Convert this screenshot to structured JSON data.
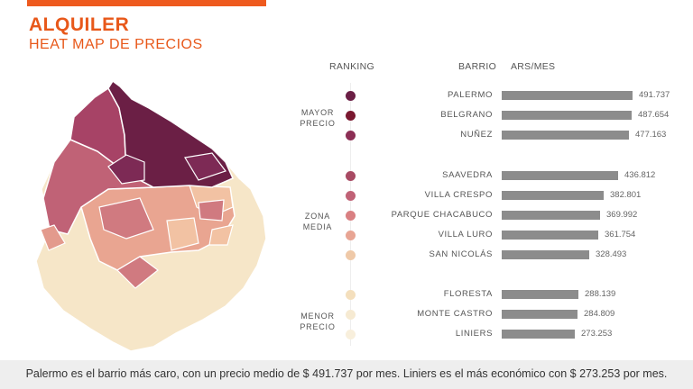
{
  "title": "ALQUILER",
  "subtitle": "HEAT MAP DE PRECIOS",
  "headers": {
    "ranking": "RANKING",
    "barrio": "BARRIO",
    "unit": "ARS/MES"
  },
  "groups": {
    "top": "MAYOR PRECIO",
    "mid": "ZONA MEDIA",
    "low": "MENOR PRECIO"
  },
  "rank_colors": [
    "#6b1f45",
    "#7a1830",
    "#8c2f55",
    "#a84a63",
    "#c06276",
    "#d98082",
    "#e8a594",
    "#efc9a8",
    "#f4dfbd",
    "#f6ead2",
    "#f8efdc"
  ],
  "chart_data": {
    "type": "bar",
    "orientation": "horizontal",
    "categories": [
      "PALERMO",
      "BELGRANO",
      "NUÑEZ",
      "SAAVEDRA",
      "VILLA CRESPO",
      "PARQUE CHACABUCO",
      "VILLA LURO",
      "SAN NICOLÁS",
      "FLORESTA",
      "MONTE CASTRO",
      "LINIERS"
    ],
    "values": [
      491737,
      487654,
      477163,
      436812,
      382801,
      369992,
      361754,
      328493,
      288139,
      284809,
      273253
    ],
    "value_labels": [
      "491.737",
      "487.654",
      "477.163",
      "436.812",
      "382.801",
      "369.992",
      "361.754",
      "328.493",
      "288.139",
      "284.809",
      "273.253"
    ],
    "bar_color": "#8c8c8c",
    "ylabel": "ARS/MES",
    "map_colors": {
      "high": "#6b1f45",
      "low": "#f6e6c8"
    }
  },
  "footer": "Palermo es el barrio más caro, con un precio medio de $ 491.737 por mes. Liniers es el más económico con $ 273.253 por mes."
}
